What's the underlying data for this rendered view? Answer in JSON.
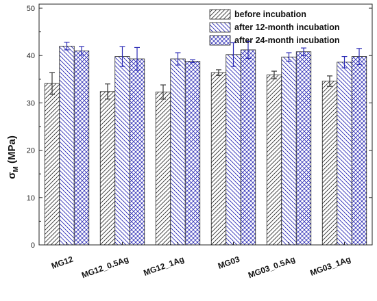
{
  "chart_data": {
    "type": "bar",
    "categories": [
      "MG12",
      "MG12_0.5Ag",
      "MG12_1Ag",
      "MG03",
      "MG03_0.5Ag",
      "MG03_1Ag"
    ],
    "series": [
      {
        "name": "before incubation",
        "values": [
          34.1,
          32.4,
          32.3,
          36.4,
          35.9,
          34.6
        ],
        "errors": [
          2.3,
          1.6,
          1.5,
          0.6,
          0.8,
          1.1
        ],
        "color": "#333333",
        "pattern": "diag-right"
      },
      {
        "name": "after 12-month incubation",
        "values": [
          42.0,
          39.8,
          39.3,
          40.2,
          39.7,
          38.6
        ],
        "errors": [
          0.8,
          2.1,
          1.3,
          2.5,
          0.9,
          1.2
        ],
        "color": "#2a2ab5",
        "pattern": "diag-left"
      },
      {
        "name": "after 24-month incubation",
        "values": [
          41.0,
          39.3,
          38.8,
          41.2,
          40.8,
          39.8
        ],
        "errors": [
          0.9,
          2.4,
          0.3,
          1.8,
          0.8,
          1.7
        ],
        "color": "#2a2ab5",
        "pattern": "cross"
      }
    ],
    "ylabel_main": "σ",
    "ylabel_sub": "M",
    "ylabel_unit": " (MPa)",
    "xlabel": "",
    "ylim": [
      0,
      50
    ],
    "yticks": [
      0,
      10,
      20,
      30,
      40,
      50
    ],
    "grid": false,
    "legend_position": "top-right"
  }
}
